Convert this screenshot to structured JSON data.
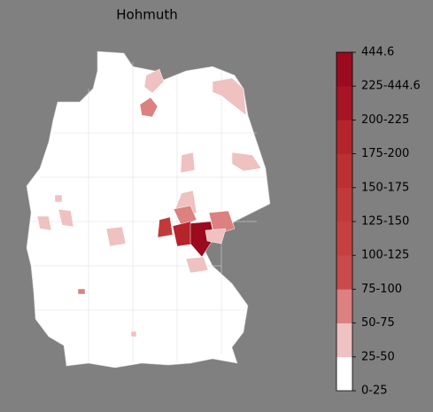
{
  "title": "Hohmuth",
  "legend": {
    "labels": [
      "0-25",
      "25-50",
      "50-75",
      "75-100",
      "100-125",
      "125-150",
      "150-175",
      "175-200",
      "200-225",
      "225-444.6",
      "444.6"
    ],
    "colors": [
      "#ffffff",
      "#efc1c1",
      "#dd8080",
      "#c94a4a",
      "#c64040",
      "#c23939",
      "#bc3032",
      "#b5232b",
      "#a81424",
      "#9b0a1e"
    ]
  }
}
